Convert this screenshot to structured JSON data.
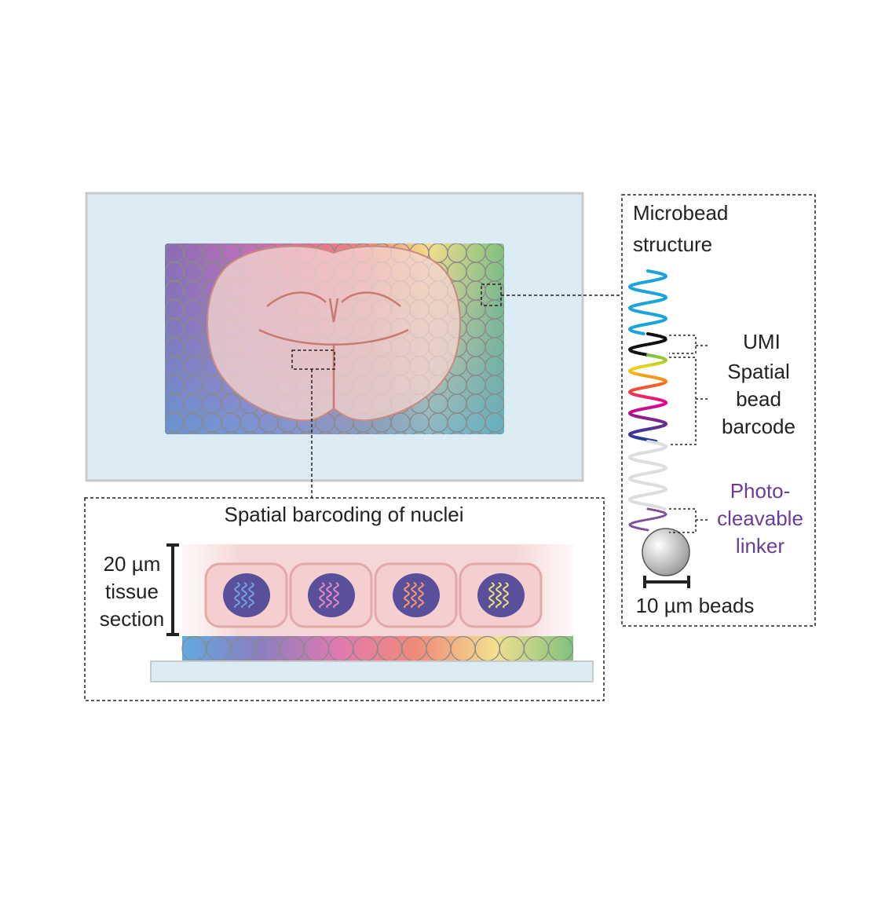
{
  "microbead_panel": {
    "title": [
      "Microbead",
      "structure"
    ],
    "umi": "UMI",
    "barcode": [
      "Spatial",
      "bead",
      "barcode"
    ],
    "linker": [
      "Photo-",
      "cleavable",
      "linker"
    ],
    "scale": "10 µm beads"
  },
  "nuclei_panel": {
    "title": "Spatial barcoding of nuclei",
    "scale": [
      "20 µm",
      "tissue",
      "section"
    ]
  }
}
